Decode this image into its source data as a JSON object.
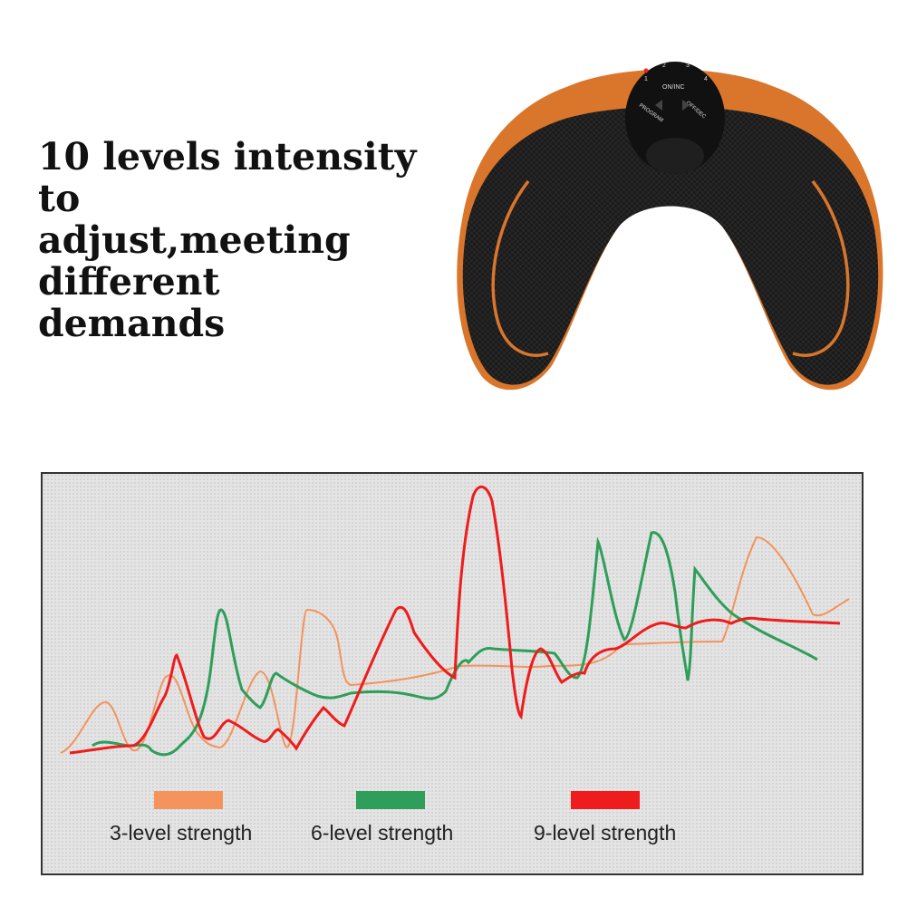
{
  "headline": {
    "lines": [
      "10 levels intensity to",
      "adjust,meeting different",
      "demands"
    ]
  },
  "device": {
    "icon": "ems-hip-trainer-device",
    "controller_labels": {
      "on_inc": "ON/INC",
      "off_dec": "OFF/DEC",
      "program": "PROGRAM",
      "levels": [
        "1",
        "2",
        "3",
        "4"
      ]
    },
    "colors": {
      "pad": "#1c1c1c",
      "accent": "#e07b2e"
    }
  },
  "legend": [
    {
      "label": "3-level strength",
      "color": "#f4935b"
    },
    {
      "label": "6-level strength",
      "color": "#2e9e5a"
    },
    {
      "label": "9-level strength",
      "color": "#ee1c1c"
    }
  ]
}
